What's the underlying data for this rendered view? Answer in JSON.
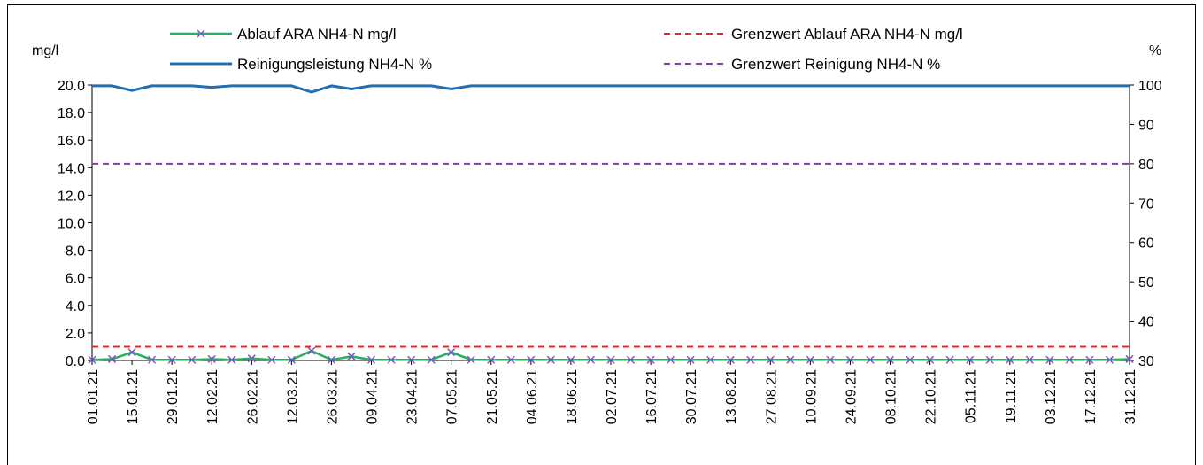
{
  "chart_data": {
    "type": "line",
    "left_unit": "mg/l",
    "right_unit": "%",
    "y_left_range": [
      0,
      20
    ],
    "y_left_ticks": [
      "0.0",
      "2.0",
      "4.0",
      "6.0",
      "8.0",
      "10.0",
      "12.0",
      "14.0",
      "16.0",
      "18.0",
      "20.0"
    ],
    "y_right_range": [
      30,
      100
    ],
    "y_right_ticks": [
      "30",
      "40",
      "50",
      "60",
      "70",
      "80",
      "90",
      "100"
    ],
    "x_range_days": [
      0,
      364
    ],
    "x_ticks": [
      "01.01.21",
      "15.01.21",
      "29.01.21",
      "12.02.21",
      "26.02.21",
      "12.03.21",
      "26.03.21",
      "09.04.21",
      "23.04.21",
      "07.05.21",
      "21.05.21",
      "04.06.21",
      "18.06.21",
      "02.07.21",
      "16.07.21",
      "30.07.21",
      "13.08.21",
      "27.08.21",
      "10.09.21",
      "24.09.21",
      "08.10.21",
      "22.10.21",
      "05.11.21",
      "19.11.21",
      "03.12.21",
      "17.12.21",
      "31.12.21"
    ],
    "legend_position": "top",
    "series": [
      {
        "name": "Ablauf ARA NH4-N mg/l",
        "axis": "left",
        "color": "#27ae60",
        "marker_color": "#7b57c8",
        "style": "solid-with-x-markers",
        "x_days": [
          0,
          7,
          14,
          21,
          28,
          35,
          42,
          49,
          56,
          63,
          70,
          77,
          84,
          91,
          98,
          105,
          112,
          119,
          126,
          133,
          140,
          147,
          154,
          161,
          168,
          175,
          182,
          189,
          196,
          203,
          210,
          217,
          224,
          231,
          238,
          245,
          252,
          259,
          266,
          273,
          280,
          287,
          294,
          301,
          308,
          315,
          322,
          329,
          336,
          343,
          350,
          357,
          364
        ],
        "values": [
          0.05,
          0.1,
          0.6,
          0.05,
          0.05,
          0.05,
          0.1,
          0.05,
          0.15,
          0.05,
          0.05,
          0.7,
          0.05,
          0.3,
          0.05,
          0.05,
          0.05,
          0.05,
          0.6,
          0.05,
          0.05,
          0.05,
          0.05,
          0.05,
          0.05,
          0.05,
          0.05,
          0.05,
          0.05,
          0.05,
          0.05,
          0.05,
          0.05,
          0.05,
          0.05,
          0.05,
          0.05,
          0.05,
          0.05,
          0.05,
          0.05,
          0.05,
          0.05,
          0.05,
          0.05,
          0.05,
          0.05,
          0.05,
          0.05,
          0.05,
          0.05,
          0.05,
          0.1
        ]
      },
      {
        "name": "Reinigungsleistung NH4-N %",
        "axis": "right",
        "color": "#1f6fb2",
        "style": "solid",
        "x_days": [
          0,
          7,
          14,
          21,
          28,
          35,
          42,
          49,
          56,
          63,
          70,
          77,
          84,
          91,
          98,
          105,
          112,
          119,
          126,
          133,
          140,
          147,
          154,
          161,
          168,
          175,
          182,
          189,
          196,
          203,
          210,
          217,
          224,
          231,
          238,
          245,
          252,
          259,
          266,
          273,
          280,
          287,
          294,
          301,
          308,
          315,
          322,
          329,
          336,
          343,
          350,
          357,
          364
        ],
        "values": [
          99.8,
          99.8,
          98.6,
          99.8,
          99.8,
          99.8,
          99.4,
          99.8,
          99.8,
          99.8,
          99.8,
          98.2,
          99.8,
          99.0,
          99.8,
          99.8,
          99.8,
          99.8,
          99.0,
          99.8,
          99.8,
          99.8,
          99.8,
          99.8,
          99.8,
          99.8,
          99.8,
          99.8,
          99.8,
          99.8,
          99.8,
          99.8,
          99.8,
          99.8,
          99.8,
          99.8,
          99.8,
          99.8,
          99.8,
          99.8,
          99.8,
          99.8,
          99.8,
          99.8,
          99.8,
          99.8,
          99.8,
          99.8,
          99.8,
          99.8,
          99.8,
          99.8,
          99.8
        ]
      },
      {
        "name": "Grenzwert Ablauf ARA NH4-N mg/l",
        "axis": "left",
        "color": "#e8282b",
        "style": "dashed",
        "x_days": [
          0,
          364
        ],
        "values": [
          1.0,
          1.0
        ]
      },
      {
        "name": "Grenzwert Reinigung NH4-N %",
        "axis": "right",
        "color": "#7b3fa6",
        "style": "dashed",
        "x_days": [
          0,
          364
        ],
        "values": [
          80,
          80
        ]
      }
    ]
  }
}
